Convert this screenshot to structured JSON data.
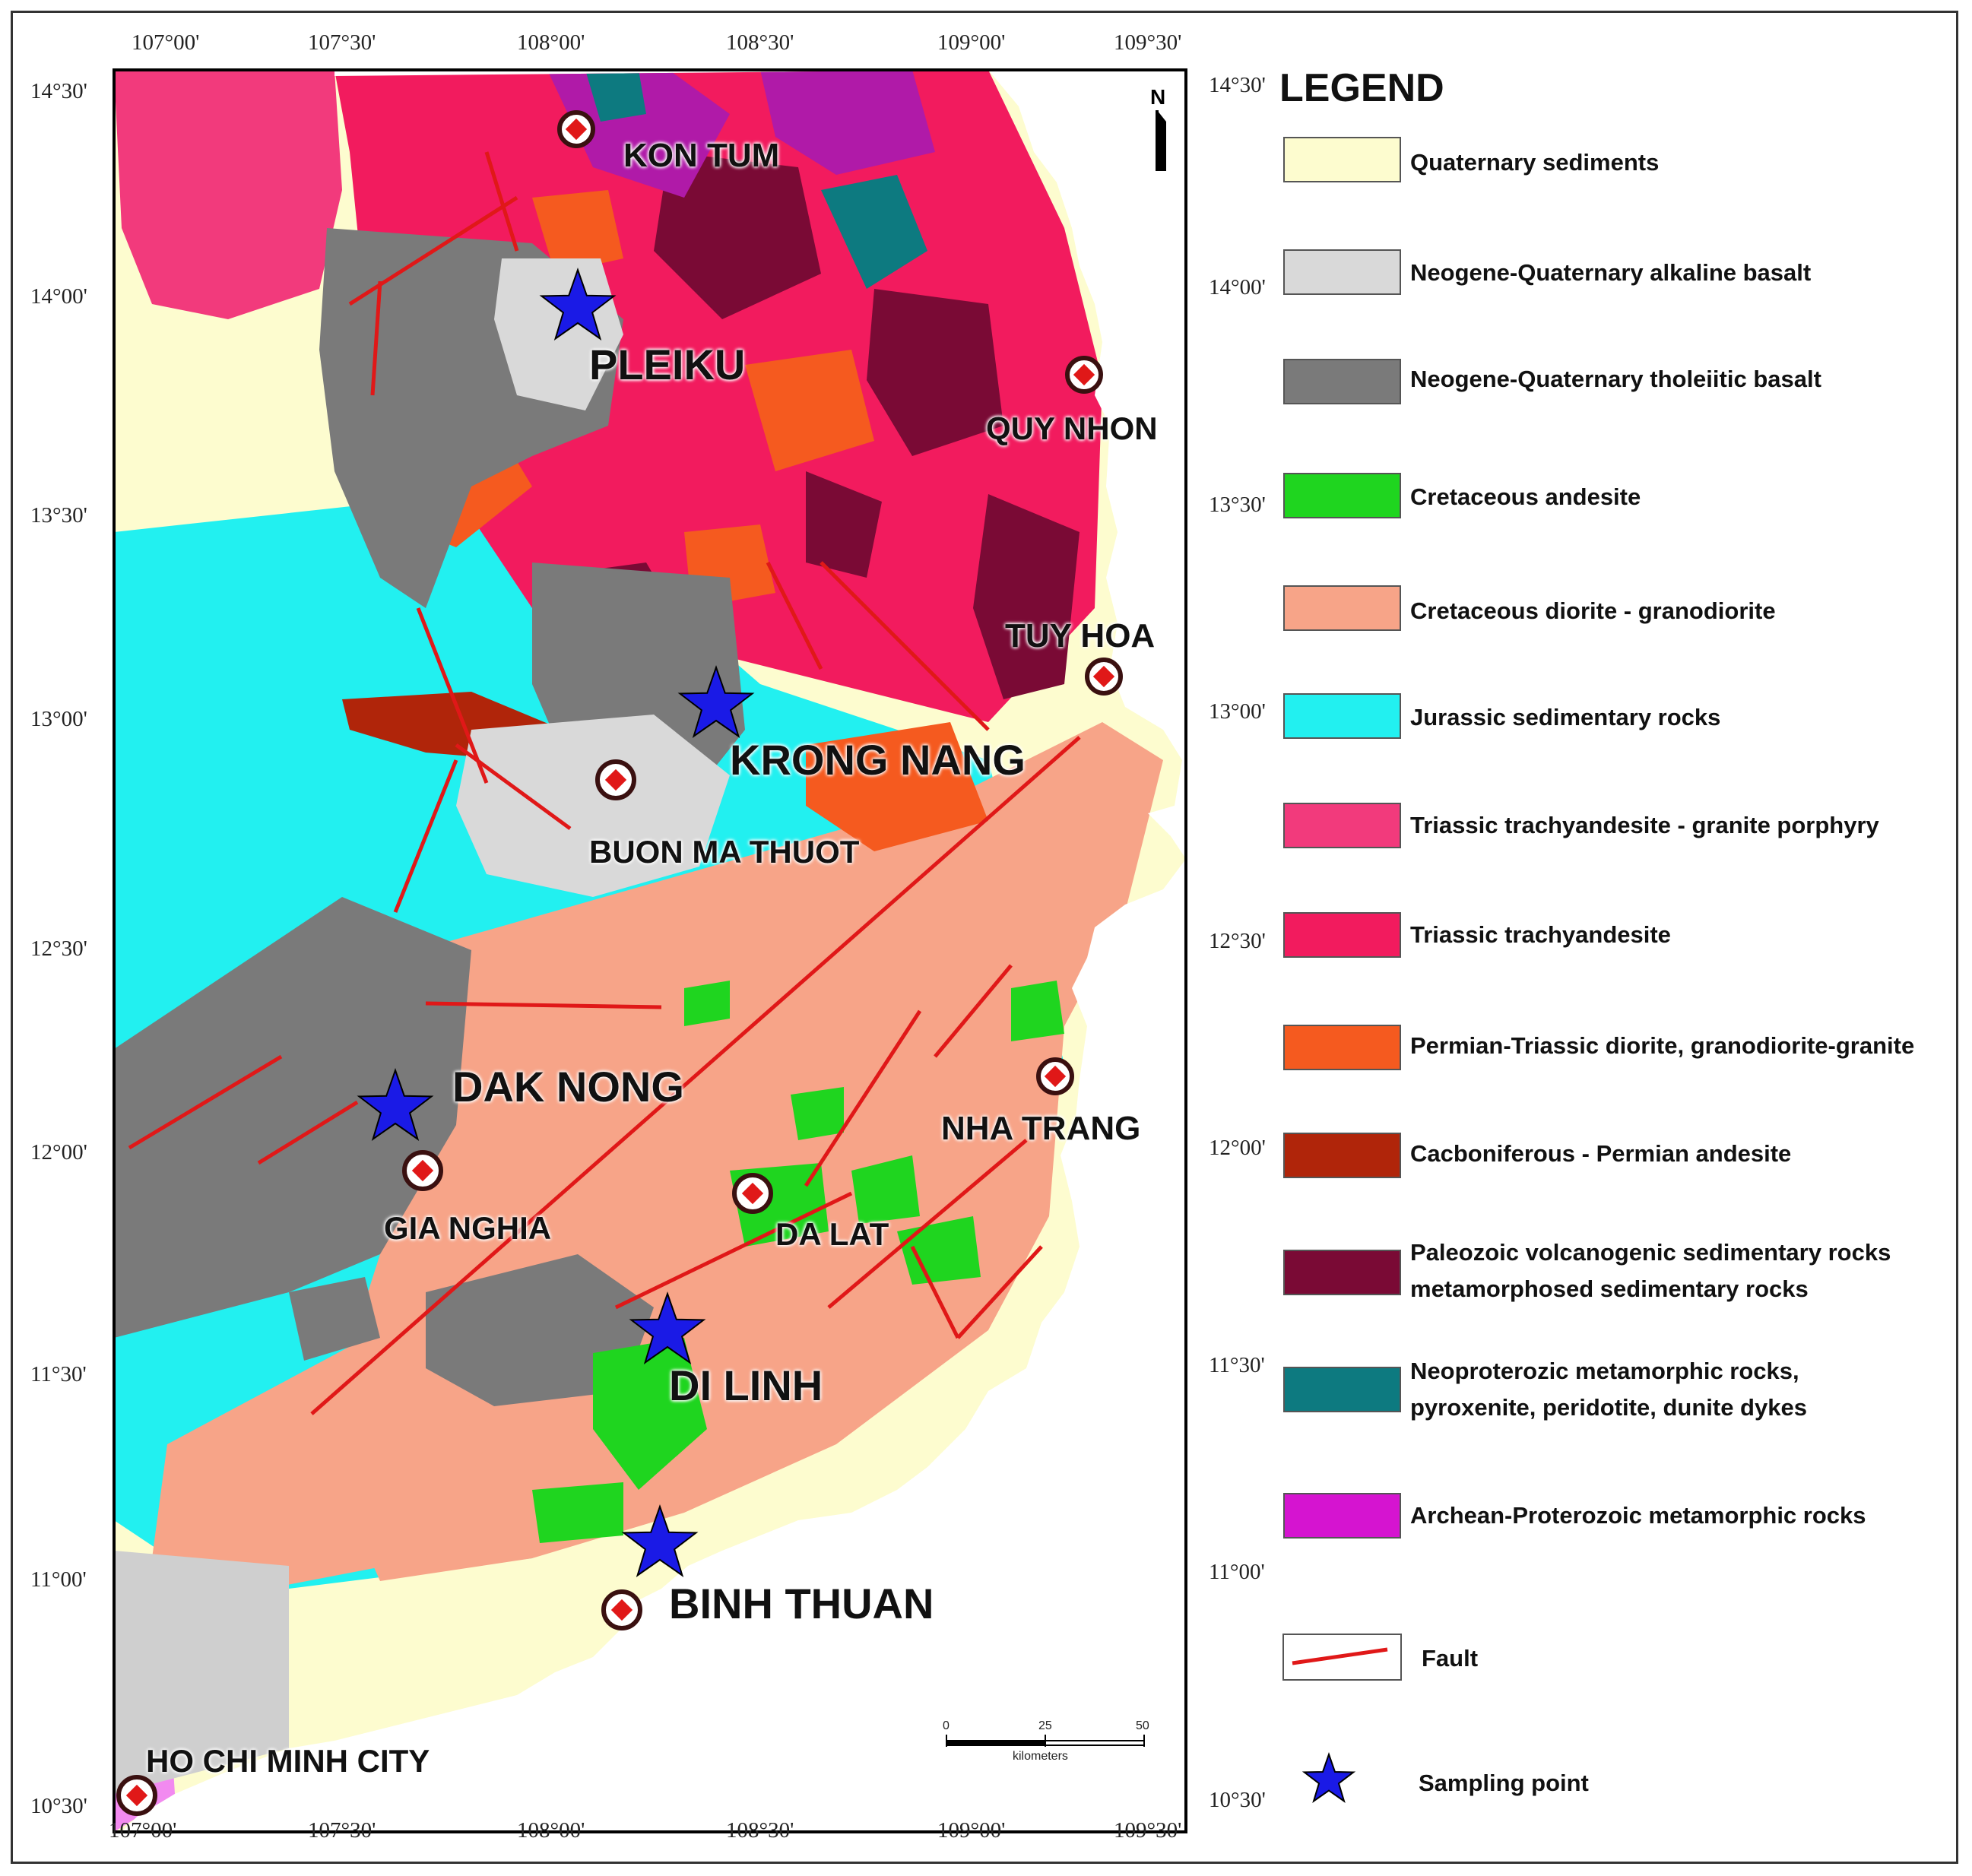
{
  "map": {
    "top_lon_labels": [
      "107°00'",
      "107°30'",
      "108°00'",
      "108°30'",
      "109°00'",
      "109°30'"
    ],
    "bottom_lon_labels": [
      "107°00'",
      "107°30'",
      "108°00'",
      "108°30'",
      "109°00'",
      "109°30'"
    ],
    "left_lat_labels": [
      "14°30'",
      "14°00'",
      "13°30'",
      "13°00'",
      "12°30'",
      "12°00'",
      "11°30'",
      "11°00'",
      "10°30'"
    ],
    "right_lat_labels": [
      "14°30'",
      "14°00'",
      "13°30'",
      "13°00'",
      "12°30'",
      "12°00'",
      "11°30'",
      "11°00'",
      "10°30'"
    ],
    "north_label": "N",
    "scale": {
      "labels": [
        "0",
        "25",
        "50"
      ],
      "unit": "kilometers"
    },
    "cities": {
      "kon_tum": "KON TUM",
      "pleiku": "PLEIKU",
      "quy_nhon": "QUY NHON",
      "tuy_hoa": "TUY HOA",
      "krong_nang": "KRONG NANG",
      "buon_ma_thuot": "BUON MA THUOT",
      "dak_nong": "DAK NONG",
      "nha_trang": "NHA TRANG",
      "gia_nghia": "GIA NGHIA",
      "da_lat": "DA LAT",
      "di_linh": "DI LINH",
      "binh_thuan": "BINH THUAN",
      "ho_chi_minh_city": "HO CHI MINH CITY"
    },
    "sampling_points": [
      "PLEIKU",
      "KRONG NANG",
      "DAK NONG",
      "DI LINH",
      "BINH THUAN"
    ]
  },
  "legend": {
    "title": "LEGEND",
    "items": [
      {
        "label": "Quaternary sediments",
        "color": "#fdfccf"
      },
      {
        "label": "Neogene-Quaternary alkaline basalt",
        "color": "#d9d9d9"
      },
      {
        "label": "Neogene-Quaternary tholeiitic basalt",
        "color": "#7a7a7a"
      },
      {
        "label": "Cretaceous andesite",
        "color": "#1fd51f"
      },
      {
        "label": "Cretaceous diorite - granodiorite",
        "color": "#f7a488"
      },
      {
        "label": "Jurassic sedimentary rocks",
        "color": "#22f0f0"
      },
      {
        "label": "Triassic trachyandesite - granite porphyry",
        "color": "#f23a7c"
      },
      {
        "label": "Triassic trachyandesite",
        "color": "#f21b5e"
      },
      {
        "label": "Permian-Triassic diorite, granodiorite-granite",
        "color": "#f55a1f"
      },
      {
        "label": "Cacboniferous - Permian andesite",
        "color": "#b0250a"
      },
      {
        "label_line1": "Paleozoic volcanogenic sedimentary rocks",
        "label_line2": "metamorphosed sedimentary rocks",
        "color": "#7a0a35"
      },
      {
        "label_line1": "Neoproterozic metamorphic rocks,",
        "label_line2": "pyroxenite, peridotite, dunite dykes",
        "color": "#0d7a80"
      },
      {
        "label": "Archean-Proterozoic metamorphic rocks",
        "color": "#d514d0"
      }
    ],
    "fault_label": "Fault",
    "fault_color": "#e01818",
    "sampling_label": "Sampling point",
    "sampling_color": "#1a1ae6"
  }
}
